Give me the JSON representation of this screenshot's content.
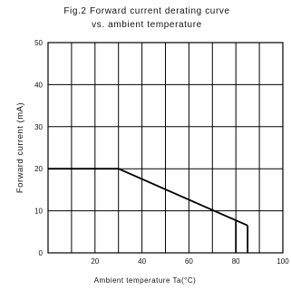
{
  "chart_data": {
    "type": "line",
    "title_line1": "Fig.2 Forward current derating curve",
    "title_line2": "vs. ambient temperature",
    "xlabel": "Ambient temperature Ta(°C)",
    "ylabel": "Forward current (mA)",
    "xlim": [
      0,
      100
    ],
    "ylim": [
      0,
      50
    ],
    "x_ticks": [
      20,
      40,
      60,
      80,
      100
    ],
    "x_tick_labels": [
      "20",
      "40",
      "60",
      "80",
      "100"
    ],
    "y_ticks": [
      0,
      10,
      20,
      30,
      40,
      50
    ],
    "y_tick_labels": [
      "0",
      "10",
      "20",
      "30",
      "40",
      "50"
    ],
    "x_grid": [
      10,
      20,
      30,
      40,
      50,
      60,
      70,
      80,
      90
    ],
    "y_grid": [
      10,
      20,
      30,
      40
    ],
    "grid": true,
    "series": [
      {
        "x": [
          0,
          30,
          85
        ],
        "y": [
          20,
          20,
          6.5
        ]
      }
    ],
    "vertical_lines": [
      {
        "x": 80,
        "y_from": 0,
        "y_to": 7.5
      },
      {
        "x": 85,
        "y_from": 0,
        "y_to": 6.5
      }
    ]
  }
}
